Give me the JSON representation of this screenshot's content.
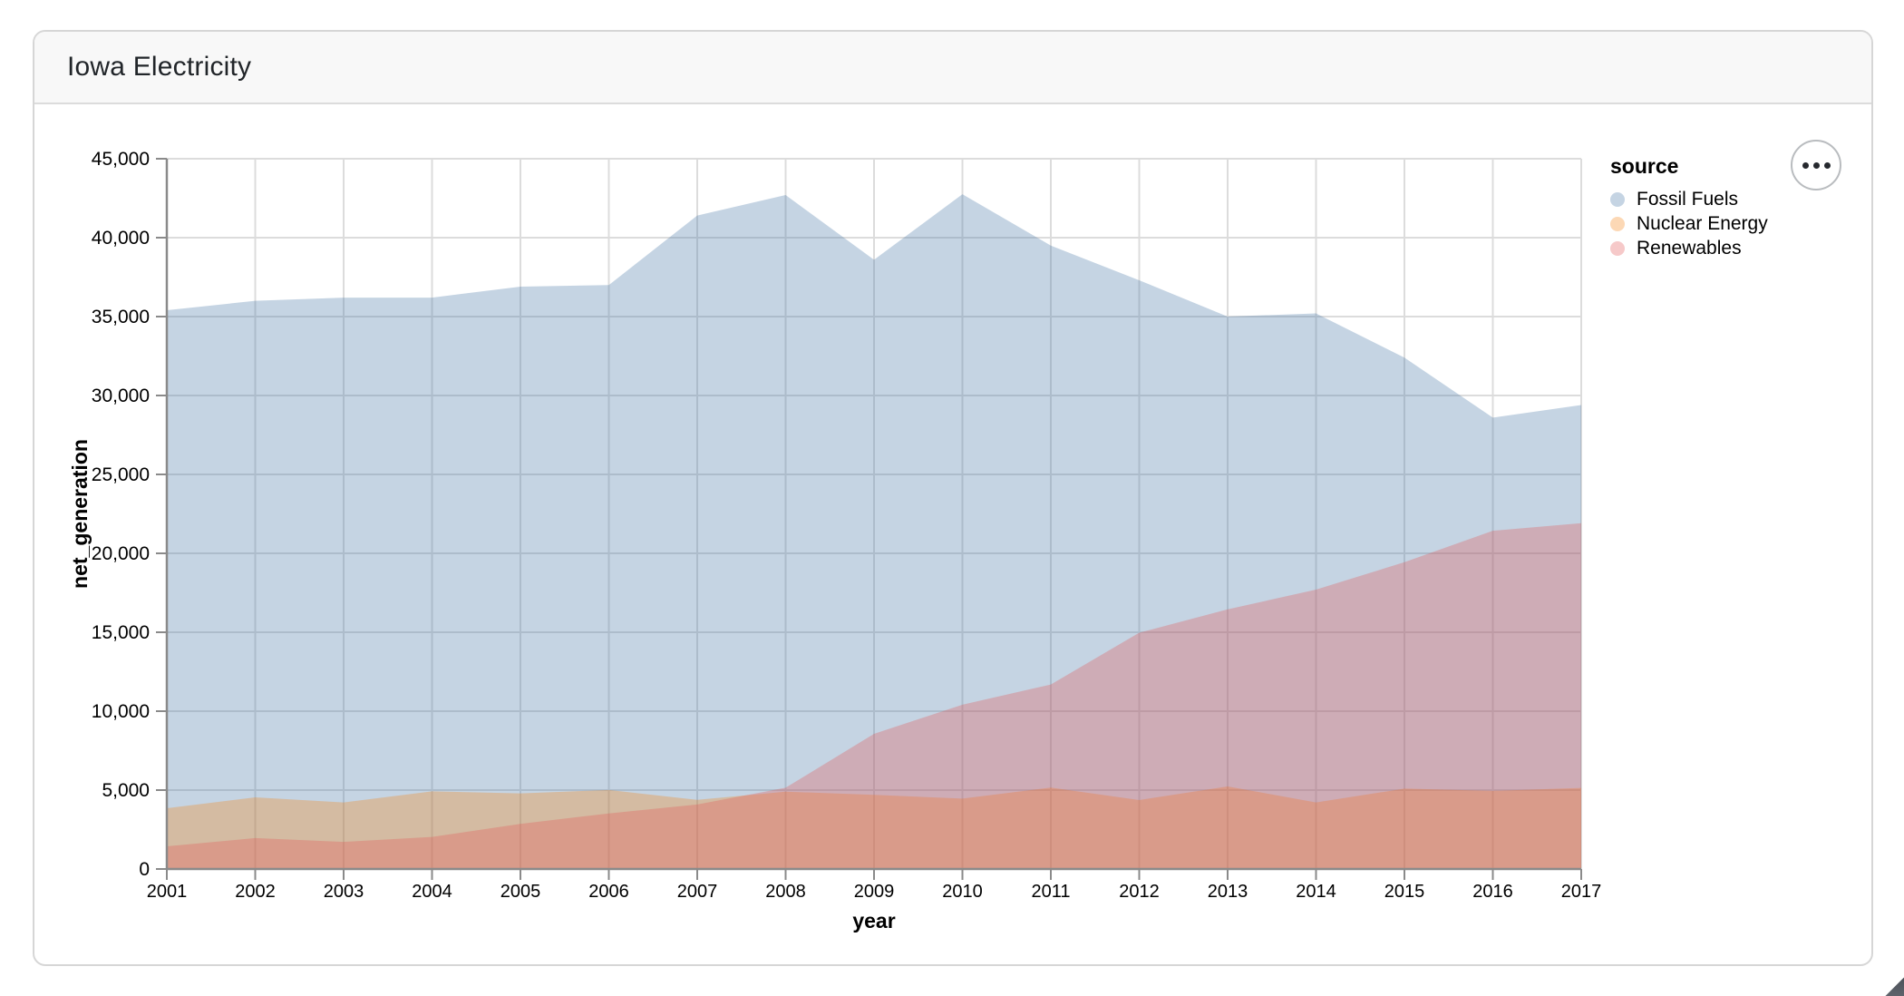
{
  "header": {
    "title": "Iowa Electricity"
  },
  "actions_menu": {
    "icon": "ellipsis-icon",
    "dots": 3
  },
  "chart_data": {
    "type": "area",
    "stacked": false,
    "title": "Iowa Electricity",
    "x": [
      2001,
      2002,
      2003,
      2004,
      2005,
      2006,
      2007,
      2008,
      2009,
      2010,
      2011,
      2012,
      2013,
      2014,
      2015,
      2016,
      2017
    ],
    "series": [
      {
        "name": "Fossil Fuels",
        "color": "#4c78a8",
        "values": [
          35400,
          36000,
          36200,
          36200,
          36900,
          37000,
          41400,
          42700,
          38600,
          42750,
          39500,
          37300,
          35000,
          35200,
          32400,
          28600,
          29400
        ]
      },
      {
        "name": "Nuclear Energy",
        "color": "#f58518",
        "values": [
          3850,
          4540,
          4220,
          4920,
          4790,
          5010,
          4380,
          4900,
          4700,
          4460,
          5160,
          4370,
          5230,
          4220,
          5090,
          4950,
          5140
        ]
      },
      {
        "name": "Renewables",
        "color": "#e45756",
        "values": [
          1440,
          1960,
          1720,
          2030,
          2860,
          3520,
          4090,
          5150,
          8560,
          10410,
          11690,
          14970,
          16450,
          17700,
          19440,
          21430,
          21910
        ]
      }
    ],
    "xlabel": "year",
    "ylabel": "net_generation",
    "ylim": [
      0,
      45000
    ],
    "ytick_step": 5000,
    "fill_opacity": 0.32,
    "grid": true,
    "gridline_color": "#dcdcdc",
    "axis_color": "#8a8a8a",
    "label_color": "#000000",
    "legend": {
      "title": "source",
      "position": "right"
    }
  }
}
